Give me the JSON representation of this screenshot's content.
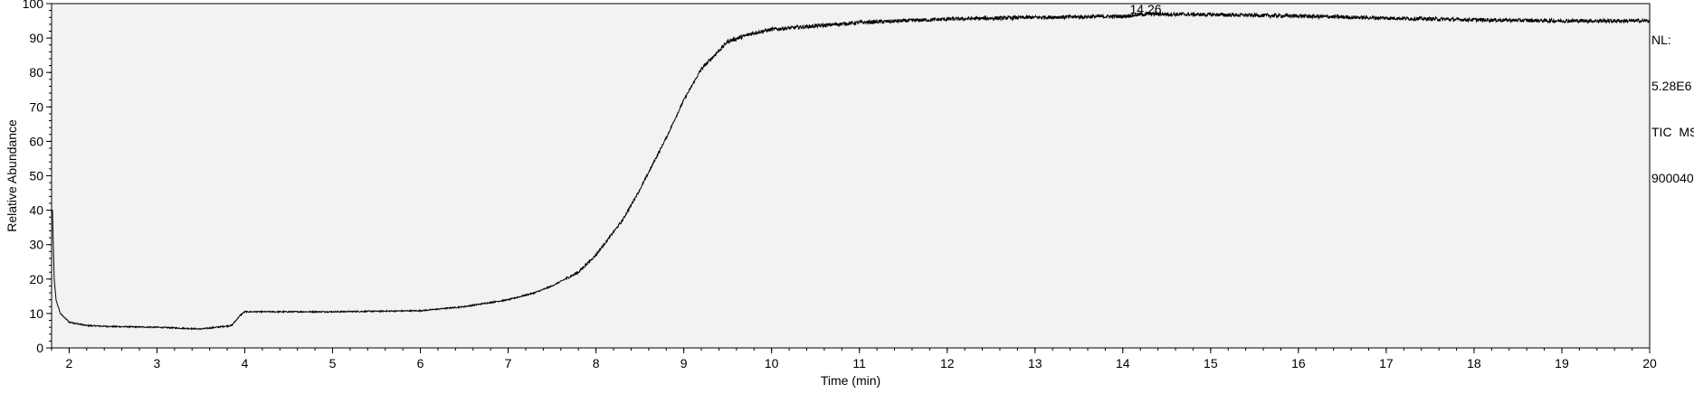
{
  "chart_data": {
    "type": "line",
    "title": "",
    "xlabel": "Time (min)",
    "ylabel": "Relative Abundance",
    "xlim": [
      1.8,
      20
    ],
    "ylim": [
      0,
      100
    ],
    "xticks": [
      "2",
      "3",
      "4",
      "5",
      "6",
      "7",
      "8",
      "9",
      "10",
      "11",
      "12",
      "13",
      "14",
      "15",
      "16",
      "17",
      "18",
      "19",
      "20"
    ],
    "yticks": [
      "0",
      "10",
      "20",
      "30",
      "40",
      "50",
      "60",
      "70",
      "80",
      "90",
      "100"
    ],
    "peak_label": "14.26",
    "peak_x": 14.26,
    "peak_y": 97,
    "info_lines": [
      "NL:",
      "5.28E6",
      "TIC  MS",
      "900040"
    ],
    "series": [
      {
        "line_color": "#000000",
        "x": [
          1.81,
          1.83,
          1.85,
          1.9,
          2.0,
          2.2,
          2.5,
          3.0,
          3.5,
          3.85,
          3.95,
          4.0,
          4.5,
          5.0,
          6.0,
          6.5,
          7.0,
          7.3,
          7.5,
          7.8,
          8.0,
          8.3,
          8.5,
          8.8,
          9.0,
          9.2,
          9.5,
          9.8,
          10.0,
          10.5,
          11.0,
          12.0,
          13.0,
          14.0,
          14.26,
          15.0,
          16.0,
          17.0,
          18.0,
          19.0,
          20.0
        ],
        "y": [
          40,
          20,
          14,
          10,
          7.5,
          6.5,
          6.2,
          6.0,
          5.5,
          6.5,
          9.5,
          10.5,
          10.5,
          10.5,
          10.8,
          12,
          14,
          16,
          18,
          22,
          27,
          37,
          46,
          61,
          72,
          81,
          89,
          91.5,
          92.5,
          93.5,
          94.5,
          95.5,
          96,
          96.3,
          97,
          96.8,
          96.4,
          95.8,
          95.3,
          95.0,
          95.0
        ]
      }
    ],
    "background": "#f2f2f2",
    "grid": false,
    "legend": "none"
  }
}
